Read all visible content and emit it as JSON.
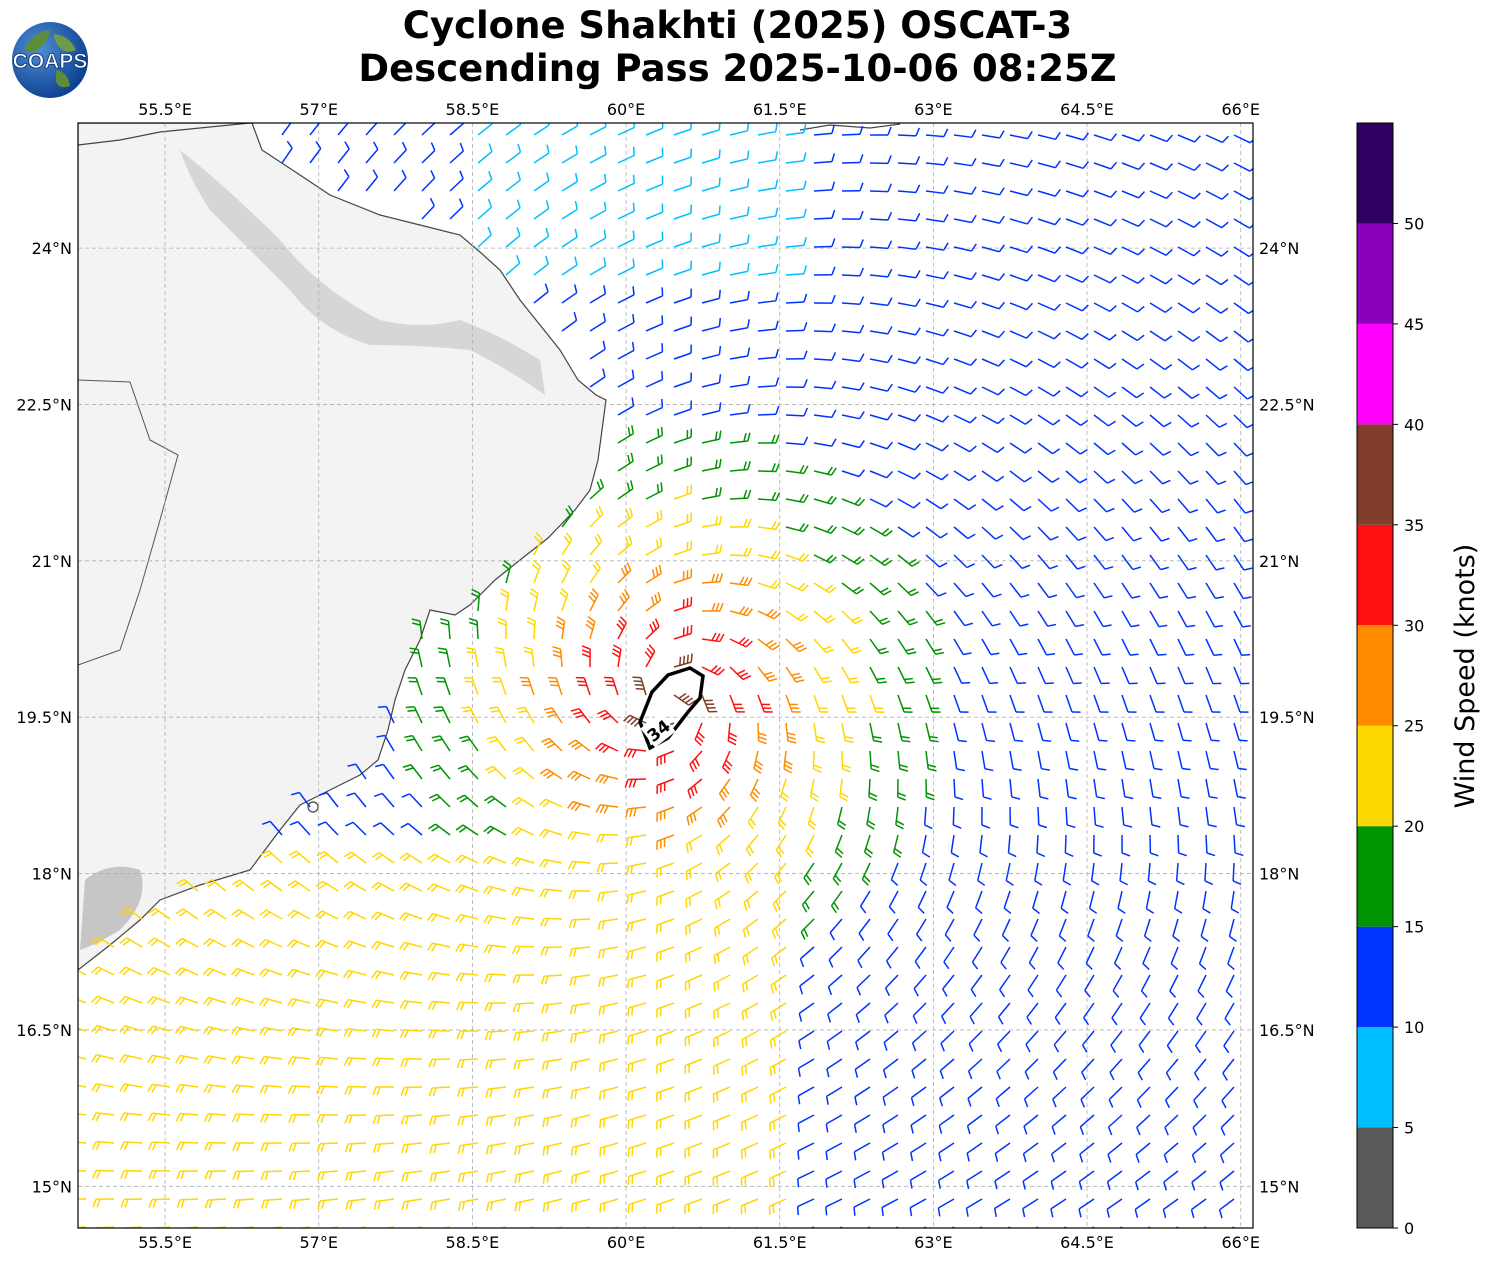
{
  "title_line1": "Cyclone Shakhti (2025) OSCAT-3",
  "title_line2": "Descending Pass 2025-10-06 08:25Z",
  "logo_text": "COAPS",
  "lon_ticks": [
    "55.5°E",
    "57°E",
    "58.5°E",
    "60°E",
    "61.5°E",
    "63°E",
    "64.5°E",
    "66°E"
  ],
  "lon_values": [
    55.5,
    57,
    58.5,
    60,
    61.5,
    63,
    64.5,
    66
  ],
  "lat_ticks": [
    "24°N",
    "22.5°N",
    "21°N",
    "19.5°N",
    "18°N",
    "16.5°N",
    "15°N"
  ],
  "lat_values": [
    24,
    22.5,
    21,
    19.5,
    18,
    16.5,
    15
  ],
  "extent": {
    "lon_min": 54.65,
    "lon_max": 66.12,
    "lat_min": 14.6,
    "lat_max": 25.2
  },
  "storm_center": {
    "lon": 60.45,
    "lat": 19.7
  },
  "wind_contour_label": "34",
  "colorbar": {
    "label": "Wind Speed (knots)",
    "tick_labels": [
      "0",
      "5",
      "10",
      "15",
      "20",
      "25",
      "30",
      "35",
      "40",
      "45",
      "50"
    ],
    "bins": [
      {
        "min": 0,
        "max": 5,
        "color": "#595959"
      },
      {
        "min": 5,
        "max": 10,
        "color": "#00bfff"
      },
      {
        "min": 10,
        "max": 15,
        "color": "#0033ff"
      },
      {
        "min": 15,
        "max": 20,
        "color": "#009400"
      },
      {
        "min": 20,
        "max": 25,
        "color": "#ffd700"
      },
      {
        "min": 25,
        "max": 30,
        "color": "#ff8c00"
      },
      {
        "min": 30,
        "max": 35,
        "color": "#ff1010"
      },
      {
        "min": 35,
        "max": 40,
        "color": "#803d29"
      },
      {
        "min": 40,
        "max": 45,
        "color": "#ff00ff"
      },
      {
        "min": 45,
        "max": 50,
        "color": "#8b00bb"
      },
      {
        "min": 50,
        "max": 55,
        "color": "#2e005f"
      }
    ]
  }
}
